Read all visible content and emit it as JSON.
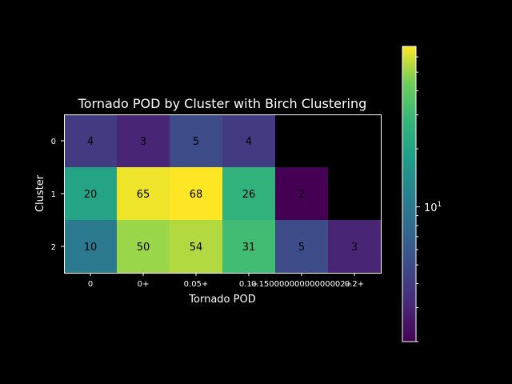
{
  "chart_data": {
    "type": "heatmap",
    "title": "Tornado POD by Cluster with Birch Clustering",
    "xlabel": "Tornado POD",
    "ylabel": "Cluster",
    "x_tick_labels": [
      "0",
      "0+",
      "0.05+",
      "0.1+",
      "0.15000000000000002+",
      "0.2+"
    ],
    "y_tick_labels": [
      "0",
      "1",
      "2"
    ],
    "values": [
      [
        4,
        3,
        5,
        4,
        null,
        null
      ],
      [
        20,
        65,
        68,
        26,
        2,
        null
      ],
      [
        10,
        50,
        54,
        31,
        5,
        3
      ]
    ],
    "colormap": "viridis",
    "color_scale": "log",
    "color_range": [
      2,
      68
    ],
    "colorbar_major_tick_label": "10",
    "colorbar_major_tick_exponent": "1",
    "missing_color": "#000000"
  }
}
